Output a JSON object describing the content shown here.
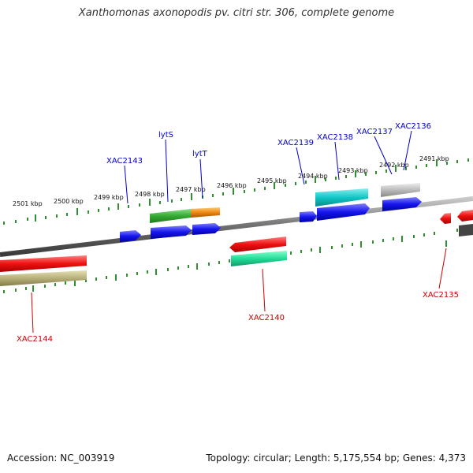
{
  "title": "Xanthomonas axonopodis pv. citri str. 306, complete genome",
  "footer": {
    "accession": "Accession: NC_003919",
    "summary": "Topology: circular; Length: 5,175,554 bp; Genes: 4,373"
  },
  "colors": {
    "backbone": "#6e6e6e",
    "tick": "#2f8f2f",
    "forward_label": "#0000cc",
    "reverse_label": "#cc0000",
    "red": "#ee1111",
    "blue": "#1515ee",
    "green": "#33aa33",
    "orange": "#ee8811",
    "cyan": "#11c6c6",
    "grey": "#b8b8b8",
    "olive": "#b8b07a",
    "teal": "#22dd99"
  },
  "scale": {
    "unit": "kbp",
    "labels": [
      "2501 kbp",
      "2500 kbp",
      "2499 kbp",
      "2498 kbp",
      "2497 kbp",
      "2496 kbp",
      "2495 kbp",
      "2494 kbp",
      "2493 kbp",
      "2492 kbp",
      "2491 kbp"
    ]
  },
  "genes": [
    {
      "id": "fwd-1",
      "label": "",
      "strand": "forward",
      "color": "blue"
    },
    {
      "id": "fwd-2",
      "label": "lytS",
      "strand": "forward",
      "color": "blue"
    },
    {
      "id": "fwd-3",
      "label": "lytT",
      "strand": "forward",
      "color": "blue"
    },
    {
      "id": "fwd-4",
      "label": "",
      "strand": "forward",
      "color": "blue"
    },
    {
      "id": "fwd-5",
      "label": "",
      "strand": "forward",
      "color": "blue"
    },
    {
      "id": "fwd-6",
      "label": "",
      "strand": "forward",
      "color": "blue"
    },
    {
      "id": "rev-1",
      "label": "",
      "strand": "reverse",
      "color": "red"
    },
    {
      "id": "rev-2",
      "label": "XAC2140",
      "strand": "reverse",
      "color": "red"
    },
    {
      "id": "rev-3",
      "label": "",
      "strand": "reverse",
      "color": "red"
    },
    {
      "id": "rev-4",
      "label": "",
      "strand": "reverse",
      "color": "red"
    }
  ],
  "features": [
    {
      "id": "feat-xac2143",
      "label": "XAC2143",
      "strand": "forward"
    },
    {
      "id": "feat-lytS",
      "label": "lytS",
      "strand": "forward",
      "color": "green"
    },
    {
      "id": "feat-lytT",
      "label": "lytT",
      "strand": "forward",
      "color": "orange"
    },
    {
      "id": "feat-xac2139",
      "label": "XAC2139",
      "strand": "forward"
    },
    {
      "id": "feat-xac2138",
      "label": "XAC2138",
      "strand": "forward",
      "color": "cyan"
    },
    {
      "id": "feat-xac2137",
      "label": "XAC2137",
      "strand": "forward",
      "color": "grey"
    },
    {
      "id": "feat-xac2136",
      "label": "XAC2136",
      "strand": "forward"
    },
    {
      "id": "feat-xac2144",
      "label": "XAC2144",
      "strand": "reverse",
      "color": "olive"
    },
    {
      "id": "feat-xac2140",
      "label": "XAC2140",
      "strand": "reverse",
      "color": "teal"
    },
    {
      "id": "feat-xac2135",
      "label": "XAC2135",
      "strand": "reverse"
    }
  ]
}
